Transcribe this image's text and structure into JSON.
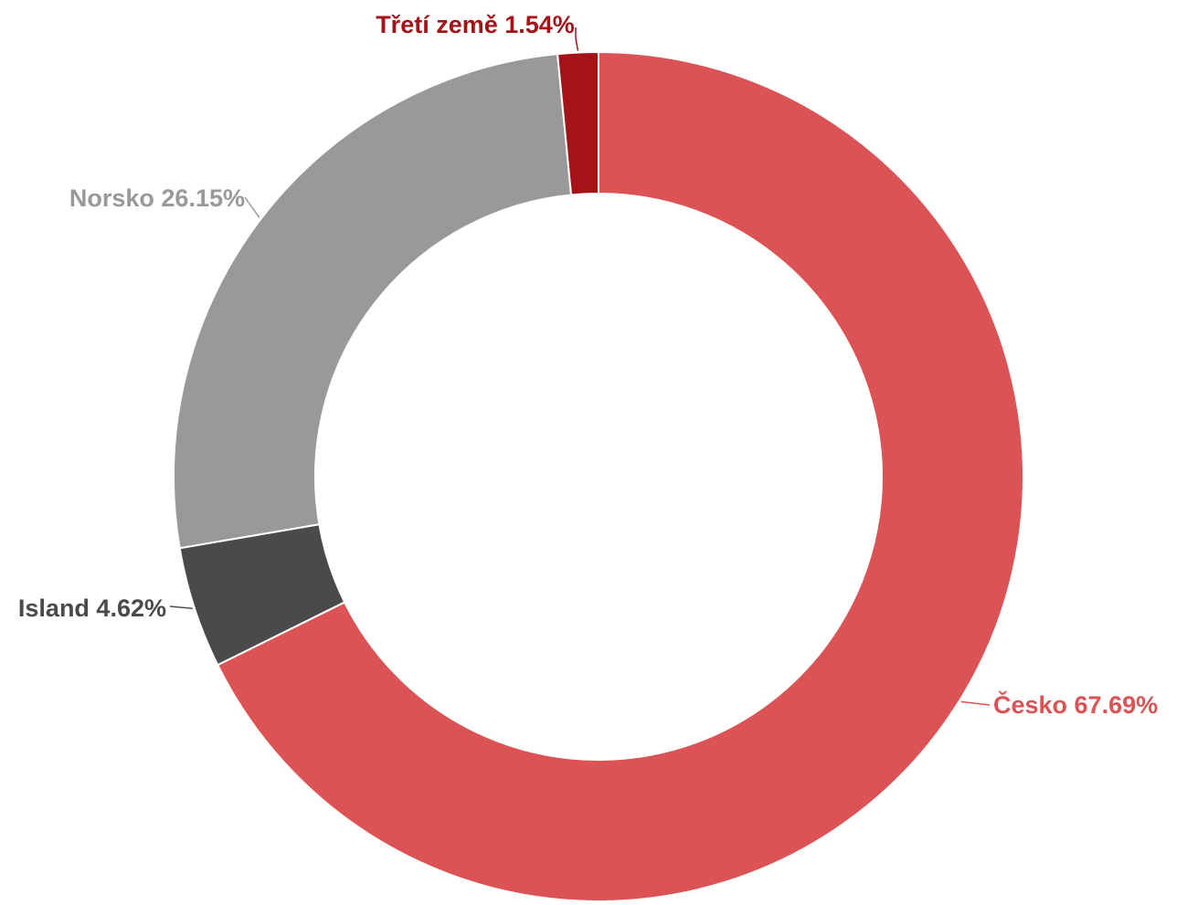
{
  "chart_data": {
    "type": "pie",
    "variant": "donut",
    "title": "",
    "slices": [
      {
        "label": "Česko 67.69%",
        "value": 67.69,
        "color": "#dc5356"
      },
      {
        "label": "Island 4.62%",
        "value": 4.62,
        "color": "#4a4a4a"
      },
      {
        "label": "Norsko 26.15%",
        "value": 26.15,
        "color": "#999999"
      },
      {
        "label": "Třetí země 1.54%",
        "value": 1.54,
        "color": "#a31318"
      }
    ],
    "legend": "none",
    "labels": "outside-with-leader-lines"
  }
}
